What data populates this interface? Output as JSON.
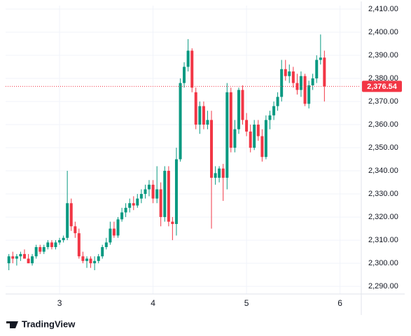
{
  "chart_data": {
    "type": "candlestick",
    "x": [
      2.458,
      2.5,
      2.542,
      2.583,
      2.625,
      2.667,
      2.708,
      2.75,
      2.792,
      2.833,
      2.875,
      2.917,
      2.958,
      3,
      3.042,
      3.083,
      3.125,
      3.167,
      3.208,
      3.25,
      3.292,
      3.333,
      3.375,
      3.417,
      3.458,
      3.5,
      3.542,
      3.583,
      3.625,
      3.667,
      3.708,
      3.75,
      3.792,
      3.833,
      3.875,
      3.917,
      3.958,
      4,
      4.042,
      4.083,
      4.125,
      4.167,
      4.208,
      4.25,
      4.292,
      4.333,
      4.375,
      4.417,
      4.458,
      4.5,
      4.542,
      4.583,
      4.625,
      4.667,
      4.708,
      4.75,
      4.792,
      4.833,
      4.875,
      4.917,
      4.958,
      5,
      5.042,
      5.083,
      5.125,
      5.167,
      5.208,
      5.25,
      5.292,
      5.333,
      5.375,
      5.417,
      5.458,
      5.5,
      5.542,
      5.583,
      5.625,
      5.667,
      5.708,
      5.75,
      5.792,
      5.833
    ],
    "open": [
      2300,
      2303,
      2302,
      2303,
      2304,
      2302,
      2300,
      2303,
      2307,
      2305,
      2307,
      2309,
      2307,
      2309,
      2310,
      2311,
      2326,
      2316,
      2313,
      2303,
      2301,
      2302,
      2300,
      2301,
      2303,
      2307,
      2309,
      2315,
      2312,
      2319,
      2322,
      2324,
      2326,
      2325,
      2328,
      2330,
      2332,
      2334,
      2328,
      2332,
      2320,
      2340,
      2318,
      2317,
      2345,
      2378,
      2385,
      2392,
      2374,
      2360,
      2368,
      2360,
      2362,
      2337,
      2337,
      2341,
      2337,
      2374,
      2350,
      2358,
      2375,
      2362,
      2357,
      2350,
      2360,
      2355,
      2346,
      2362,
      2364,
      2368,
      2372,
      2384,
      2381,
      2383,
      2378,
      2375,
      2381,
      2369,
      2377,
      2380,
      2388,
      2389
    ],
    "high": [
      2304,
      2305,
      2304,
      2305,
      2306,
      2304,
      2304,
      2308,
      2308,
      2308,
      2310,
      2310,
      2310,
      2311,
      2312,
      2340,
      2328,
      2318,
      2315,
      2305,
      2303,
      2303,
      2303,
      2304,
      2308,
      2311,
      2318,
      2318,
      2320,
      2324,
      2326,
      2328,
      2329,
      2330,
      2332,
      2334,
      2336,
      2336,
      2342,
      2335,
      2342,
      2342,
      2320,
      2350,
      2380,
      2387,
      2397,
      2393,
      2376,
      2370,
      2370,
      2366,
      2366,
      2342,
      2342,
      2343,
      2378,
      2376,
      2362,
      2376,
      2377,
      2365,
      2360,
      2362,
      2362,
      2358,
      2364,
      2366,
      2370,
      2374,
      2388,
      2388,
      2386,
      2385,
      2382,
      2383,
      2382,
      2379,
      2382,
      2390,
      2399,
      2392
    ],
    "low": [
      2297,
      2300,
      2299,
      2301,
      2302,
      2300,
      2299,
      2302,
      2304,
      2304,
      2306,
      2306,
      2306,
      2308,
      2309,
      2310,
      2314,
      2311,
      2302,
      2300,
      2298,
      2298,
      2297,
      2300,
      2302,
      2306,
      2308,
      2311,
      2311,
      2318,
      2320,
      2322,
      2323,
      2324,
      2326,
      2328,
      2329,
      2326,
      2326,
      2316,
      2318,
      2316,
      2310,
      2312,
      2344,
      2376,
      2383,
      2374,
      2358,
      2356,
      2358,
      2358,
      2315,
      2334,
      2335,
      2327,
      2332,
      2348,
      2348,
      2356,
      2360,
      2355,
      2348,
      2349,
      2353,
      2344,
      2345,
      2358,
      2362,
      2366,
      2370,
      2379,
      2378,
      2376,
      2373,
      2372,
      2368,
      2367,
      2375,
      2378,
      2386,
      2370
    ],
    "close": [
      2303,
      2302,
      2303,
      2304,
      2302,
      2300,
      2303,
      2307,
      2305,
      2307,
      2309,
      2307,
      2309,
      2310,
      2311,
      2326,
      2316,
      2313,
      2303,
      2301,
      2302,
      2300,
      2301,
      2303,
      2307,
      2309,
      2315,
      2312,
      2319,
      2322,
      2324,
      2326,
      2325,
      2328,
      2330,
      2332,
      2334,
      2328,
      2332,
      2320,
      2340,
      2318,
      2317,
      2345,
      2378,
      2385,
      2392,
      2376,
      2360,
      2368,
      2360,
      2362,
      2337,
      2339,
      2341,
      2337,
      2374,
      2350,
      2358,
      2375,
      2362,
      2357,
      2350,
      2360,
      2355,
      2346,
      2362,
      2364,
      2368,
      2372,
      2384,
      2381,
      2383,
      2378,
      2375,
      2381,
      2369,
      2377,
      2380,
      2388,
      2389,
      2376.54
    ],
    "up_color": "#089981",
    "down_color": "#f23645",
    "xlim": [
      2.423,
      6.22
    ],
    "xticks": [
      3,
      4,
      5,
      6
    ],
    "ylim": [
      2286.7,
      2411.5
    ],
    "yticks": [
      {
        "value": 2290,
        "label": "2,290.00"
      },
      {
        "value": 2300,
        "label": "2,300.00"
      },
      {
        "value": 2310,
        "label": "2,310.00"
      },
      {
        "value": 2320,
        "label": "2,320.00"
      },
      {
        "value": 2330,
        "label": "2,330.00"
      },
      {
        "value": 2340,
        "label": "2,340.00"
      },
      {
        "value": 2350,
        "label": "2,350.00"
      },
      {
        "value": 2360,
        "label": "2,360.00"
      },
      {
        "value": 2370,
        "label": "2,370.00"
      },
      {
        "value": 2380,
        "label": "2,380.00"
      },
      {
        "value": 2390,
        "label": "2,390.00"
      },
      {
        "value": 2400,
        "label": "2,400.00"
      },
      {
        "value": 2410,
        "label": "2,410.00"
      }
    ],
    "price_label": {
      "value": 2376.54,
      "label": "2,376.54"
    },
    "grid": true,
    "brand": "TradingView"
  }
}
